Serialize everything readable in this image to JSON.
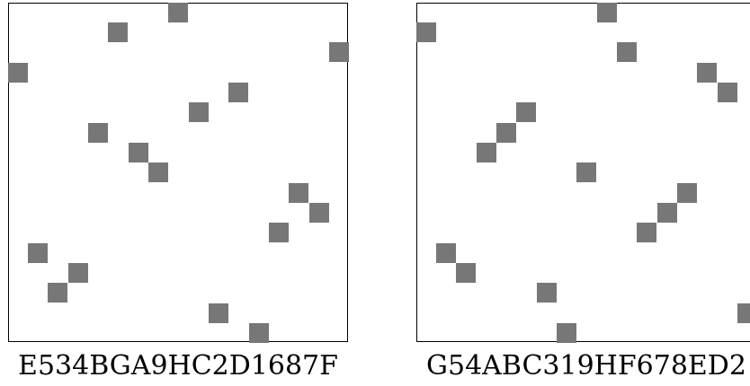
{
  "panels": [
    {
      "caption": "E534BGA9HC2D1687F",
      "grid_size": 17,
      "cells": [
        [
          8,
          0
        ],
        [
          5,
          1
        ],
        [
          16,
          2
        ],
        [
          0,
          3
        ],
        [
          11,
          4
        ],
        [
          9,
          5
        ],
        [
          4,
          6
        ],
        [
          6,
          7
        ],
        [
          7,
          8
        ],
        [
          14,
          9
        ],
        [
          15,
          10
        ],
        [
          13,
          11
        ],
        [
          1,
          12
        ],
        [
          3,
          13
        ],
        [
          2,
          14
        ],
        [
          10,
          15
        ],
        [
          12,
          16
        ]
      ]
    },
    {
      "caption": "G54ABC319HF678ED2",
      "grid_size": 17,
      "cells": [
        [
          9,
          0
        ],
        [
          0,
          1
        ],
        [
          10,
          2
        ],
        [
          14,
          3
        ],
        [
          15,
          4
        ],
        [
          5,
          5
        ],
        [
          4,
          6
        ],
        [
          3,
          7
        ],
        [
          8,
          8
        ],
        [
          13,
          9
        ],
        [
          12,
          10
        ],
        [
          11,
          11
        ],
        [
          1,
          12
        ],
        [
          2,
          13
        ],
        [
          6,
          14
        ],
        [
          16,
          15
        ],
        [
          7,
          16
        ]
      ]
    }
  ],
  "cell_color": "#777777",
  "background_color": "#ffffff",
  "border_color": "#000000"
}
